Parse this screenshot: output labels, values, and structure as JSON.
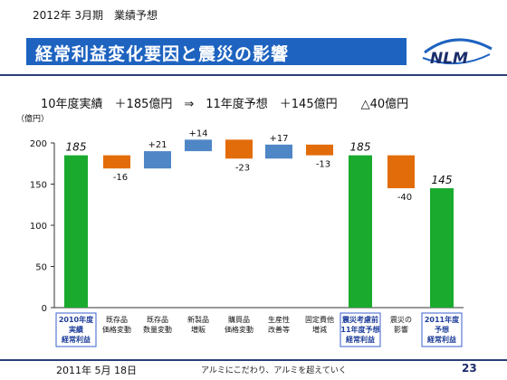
{
  "header": {
    "period_label": "2012年 3月期　業績予想",
    "title": "経常利益変化要因と震災の影響",
    "summary": "10年度実績　＋185億円　⇒　11年度予想　＋145億円　　△40億円"
  },
  "logo": {
    "text": "NLM"
  },
  "chart_data": {
    "type": "bar",
    "subtype": "waterfall",
    "y_unit_label": "（億円）",
    "ylim": [
      0,
      200
    ],
    "yticks": [
      0,
      50,
      100,
      150,
      200
    ],
    "grid": false,
    "categories": [
      [
        "2010年度",
        "実績",
        "経常利益"
      ],
      [
        "既存品",
        "価格変動"
      ],
      [
        "既存品",
        "数量変動"
      ],
      [
        "新製品",
        "増販"
      ],
      [
        "購買品",
        "価格変動"
      ],
      [
        "生産性",
        "改善等"
      ],
      [
        "固定費他",
        "増減"
      ],
      [
        "震災考慮前",
        "11年度予想",
        "経常利益"
      ],
      [
        "震災の",
        "影響"
      ],
      [
        "2011年度",
        "予想",
        "経常利益"
      ]
    ],
    "bars": [
      {
        "kind": "total",
        "start": 0,
        "end": 185,
        "label": "185"
      },
      {
        "kind": "decrease",
        "start": 185,
        "end": 169,
        "label": "-16"
      },
      {
        "kind": "increase",
        "start": 169,
        "end": 190,
        "label": "+21"
      },
      {
        "kind": "increase",
        "start": 190,
        "end": 204,
        "label": "+14"
      },
      {
        "kind": "decrease",
        "start": 204,
        "end": 181,
        "label": "-23"
      },
      {
        "kind": "increase",
        "start": 181,
        "end": 198,
        "label": "+17"
      },
      {
        "kind": "decrease",
        "start": 198,
        "end": 185,
        "label": "-13"
      },
      {
        "kind": "total",
        "start": 0,
        "end": 185,
        "label": "185"
      },
      {
        "kind": "decrease",
        "start": 185,
        "end": 145,
        "label": "-40"
      },
      {
        "kind": "total",
        "start": 0,
        "end": 145,
        "label": "145"
      }
    ],
    "boxed_categories": [
      0,
      7,
      9
    ],
    "colors": {
      "total": "#1aaa2e",
      "increase": "#4f86c6",
      "decrease": "#e36c0a",
      "label_box_border": "#3a5fcd",
      "label_text": "#1f3f9a"
    }
  },
  "footer": {
    "date": "2011年 5月 18日",
    "slogan": "アルミにこだわり、アルミを超えていく",
    "page": "23"
  }
}
